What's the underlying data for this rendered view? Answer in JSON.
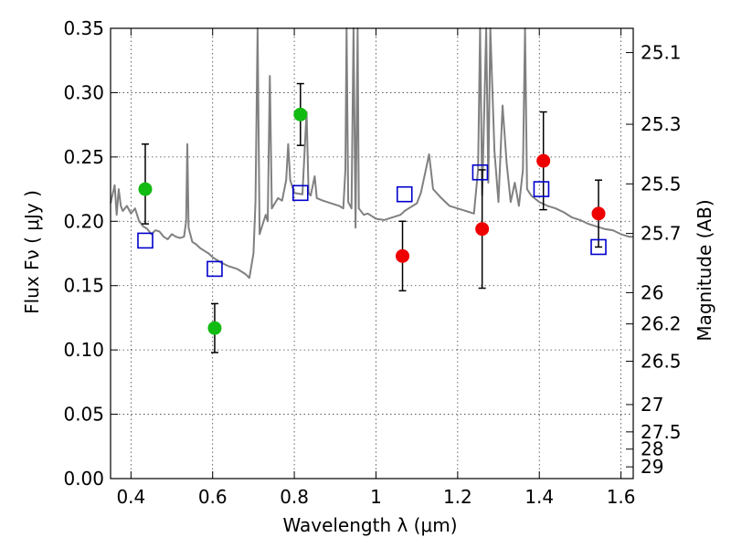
{
  "chart_data": {
    "type": "scatter",
    "xlabel": "Wavelength  λ (μm)",
    "ylabel": "Flux  Fν  ( μJy )",
    "y2label": "Magnitude (AB)",
    "xlim": [
      0.35,
      1.63
    ],
    "ylim": [
      0.0,
      0.35
    ],
    "x_ticks": [
      0.4,
      0.6,
      0.8,
      1.0,
      1.2,
      1.4,
      1.6
    ],
    "x_tick_labels": [
      "0.4",
      "0.6",
      "0.8",
      "1",
      "1.2",
      "1.4",
      "1.6"
    ],
    "y_ticks": [
      0.0,
      0.05,
      0.1,
      0.15,
      0.2,
      0.25,
      0.3,
      0.35
    ],
    "y_tick_labels": [
      "0.00",
      "0.05",
      "0.10",
      "0.15",
      "0.20",
      "0.25",
      "0.30",
      "0.35"
    ],
    "y2_ticks": [
      "25.1",
      "25.3",
      "25.5",
      "25.7",
      "26",
      "26.2",
      "26.5",
      "27",
      "27.5",
      "28",
      "29"
    ],
    "grid": true,
    "colors": {
      "model": "#808080",
      "green": "#11bb11",
      "red": "#ee0000",
      "blue": "#0000cc",
      "error": "#000000"
    },
    "series": [
      {
        "marker": "circle",
        "color": "green",
        "points": [
          {
            "x": 0.435,
            "y": 0.225,
            "lo": 0.198,
            "hi": 0.26
          },
          {
            "x": 0.605,
            "y": 0.117,
            "lo": 0.098,
            "hi": 0.136
          },
          {
            "x": 0.815,
            "y": 0.283,
            "lo": 0.259,
            "hi": 0.307
          }
        ]
      },
      {
        "marker": "circle",
        "color": "red",
        "points": [
          {
            "x": 1.065,
            "y": 0.173,
            "lo": 0.146,
            "hi": 0.2
          },
          {
            "x": 1.26,
            "y": 0.194,
            "lo": 0.148,
            "hi": 0.24
          },
          {
            "x": 1.41,
            "y": 0.247,
            "lo": 0.209,
            "hi": 0.285
          },
          {
            "x": 1.545,
            "y": 0.206,
            "lo": 0.18,
            "hi": 0.232
          }
        ]
      },
      {
        "marker": "open-square",
        "color": "blue",
        "points": [
          {
            "x": 0.435,
            "y": 0.185
          },
          {
            "x": 0.605,
            "y": 0.163
          },
          {
            "x": 0.815,
            "y": 0.222
          },
          {
            "x": 1.07,
            "y": 0.221
          },
          {
            "x": 1.255,
            "y": 0.238
          },
          {
            "x": 1.405,
            "y": 0.225
          },
          {
            "x": 1.545,
            "y": 0.18
          }
        ]
      },
      {
        "type": "line",
        "color": "model",
        "points": [
          [
            0.35,
            0.214
          ],
          [
            0.36,
            0.228
          ],
          [
            0.365,
            0.205
          ],
          [
            0.37,
            0.225
          ],
          [
            0.375,
            0.212
          ],
          [
            0.38,
            0.208
          ],
          [
            0.39,
            0.212
          ],
          [
            0.4,
            0.206
          ],
          [
            0.41,
            0.21
          ],
          [
            0.42,
            0.2
          ],
          [
            0.43,
            0.196
          ],
          [
            0.44,
            0.194
          ],
          [
            0.45,
            0.19
          ],
          [
            0.46,
            0.193
          ],
          [
            0.47,
            0.192
          ],
          [
            0.48,
            0.188
          ],
          [
            0.49,
            0.186
          ],
          [
            0.5,
            0.19
          ],
          [
            0.51,
            0.188
          ],
          [
            0.52,
            0.187
          ],
          [
            0.53,
            0.188
          ],
          [
            0.535,
            0.2
          ],
          [
            0.538,
            0.26
          ],
          [
            0.541,
            0.195
          ],
          [
            0.55,
            0.184
          ],
          [
            0.56,
            0.182
          ],
          [
            0.57,
            0.179
          ],
          [
            0.58,
            0.177
          ],
          [
            0.59,
            0.175
          ],
          [
            0.6,
            0.172
          ],
          [
            0.62,
            0.168
          ],
          [
            0.64,
            0.165
          ],
          [
            0.66,
            0.163
          ],
          [
            0.68,
            0.159
          ],
          [
            0.69,
            0.156
          ],
          [
            0.7,
            0.175
          ],
          [
            0.705,
            0.215
          ],
          [
            0.71,
            0.35
          ],
          [
            0.715,
            0.19
          ],
          [
            0.72,
            0.195
          ],
          [
            0.73,
            0.205
          ],
          [
            0.735,
            0.2
          ],
          [
            0.74,
            0.313
          ],
          [
            0.745,
            0.21
          ],
          [
            0.76,
            0.218
          ],
          [
            0.77,
            0.216
          ],
          [
            0.78,
            0.232
          ],
          [
            0.785,
            0.26
          ],
          [
            0.79,
            0.232
          ],
          [
            0.8,
            0.222
          ],
          [
            0.82,
            0.221
          ],
          [
            0.83,
            0.285
          ],
          [
            0.835,
            0.222
          ],
          [
            0.84,
            0.22
          ],
          [
            0.85,
            0.235
          ],
          [
            0.855,
            0.218
          ],
          [
            0.87,
            0.216
          ],
          [
            0.89,
            0.214
          ],
          [
            0.91,
            0.212
          ],
          [
            0.92,
            0.21
          ],
          [
            0.925,
            0.24
          ],
          [
            0.928,
            0.35
          ],
          [
            0.932,
            0.215
          ],
          [
            0.94,
            0.21
          ],
          [
            0.945,
            0.35
          ],
          [
            0.95,
            0.195
          ],
          [
            0.955,
            0.35
          ],
          [
            0.958,
            0.21
          ],
          [
            0.97,
            0.205
          ],
          [
            0.98,
            0.206
          ],
          [
            0.99,
            0.204
          ],
          [
            1.0,
            0.202
          ],
          [
            1.02,
            0.201
          ],
          [
            1.04,
            0.203
          ],
          [
            1.06,
            0.205
          ],
          [
            1.07,
            0.208
          ],
          [
            1.08,
            0.21
          ],
          [
            1.1,
            0.214
          ],
          [
            1.11,
            0.222
          ],
          [
            1.13,
            0.252
          ],
          [
            1.14,
            0.225
          ],
          [
            1.16,
            0.218
          ],
          [
            1.18,
            0.212
          ],
          [
            1.2,
            0.21
          ],
          [
            1.22,
            0.208
          ],
          [
            1.24,
            0.206
          ],
          [
            1.25,
            0.24
          ],
          [
            1.255,
            0.35
          ],
          [
            1.26,
            0.22
          ],
          [
            1.27,
            0.35
          ],
          [
            1.275,
            0.23
          ],
          [
            1.28,
            0.35
          ],
          [
            1.29,
            0.255
          ],
          [
            1.3,
            0.215
          ],
          [
            1.31,
            0.29
          ],
          [
            1.32,
            0.245
          ],
          [
            1.33,
            0.215
          ],
          [
            1.34,
            0.23
          ],
          [
            1.35,
            0.212
          ],
          [
            1.36,
            0.24
          ],
          [
            1.365,
            0.35
          ],
          [
            1.37,
            0.225
          ],
          [
            1.38,
            0.22
          ],
          [
            1.4,
            0.215
          ],
          [
            1.42,
            0.212
          ],
          [
            1.44,
            0.21
          ],
          [
            1.46,
            0.207
          ],
          [
            1.48,
            0.203
          ],
          [
            1.5,
            0.201
          ],
          [
            1.52,
            0.198
          ],
          [
            1.54,
            0.196
          ],
          [
            1.56,
            0.194
          ],
          [
            1.58,
            0.193
          ],
          [
            1.6,
            0.19
          ],
          [
            1.62,
            0.188
          ],
          [
            1.63,
            0.188
          ]
        ]
      }
    ]
  }
}
